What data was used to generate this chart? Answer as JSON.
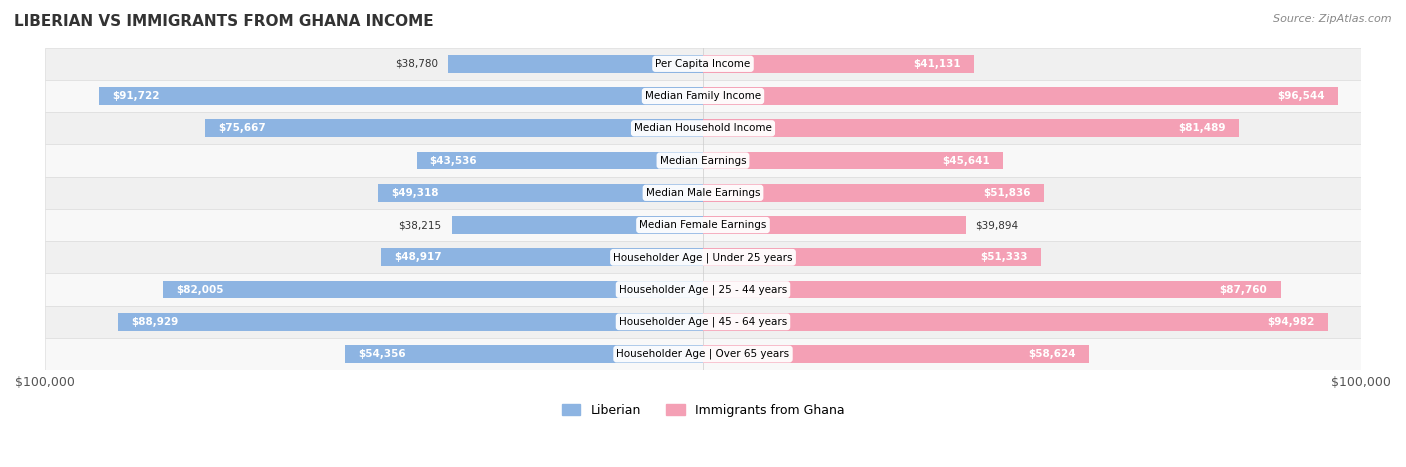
{
  "title": "LIBERIAN VS IMMIGRANTS FROM GHANA INCOME",
  "source": "Source: ZipAtlas.com",
  "categories": [
    "Per Capita Income",
    "Median Family Income",
    "Median Household Income",
    "Median Earnings",
    "Median Male Earnings",
    "Median Female Earnings",
    "Householder Age | Under 25 years",
    "Householder Age | 25 - 44 years",
    "Householder Age | 45 - 64 years",
    "Householder Age | Over 65 years"
  ],
  "liberian_values": [
    38780,
    91722,
    75667,
    43536,
    49318,
    38215,
    48917,
    82005,
    88929,
    54356
  ],
  "ghana_values": [
    41131,
    96544,
    81489,
    45641,
    51836,
    39894,
    51333,
    87760,
    94982,
    58624
  ],
  "liberian_labels": [
    "$38,780",
    "$91,722",
    "$75,667",
    "$43,536",
    "$49,318",
    "$38,215",
    "$48,917",
    "$82,005",
    "$88,929",
    "$54,356"
  ],
  "ghana_labels": [
    "$41,131",
    "$96,544",
    "$81,489",
    "$45,641",
    "$51,836",
    "$39,894",
    "$51,333",
    "$87,760",
    "$94,982",
    "$58,624"
  ],
  "liberian_color": "#8db4e2",
  "ghana_color": "#f4a0b5",
  "liberian_color_dark": "#6699cc",
  "ghana_color_dark": "#e87099",
  "max_value": 100000,
  "bg_color": "#f5f5f5",
  "row_bg_light": "#f9f9f9",
  "row_bg_dark": "#eeeeee",
  "liberian_legend": "Liberian",
  "ghana_legend": "Immigrants from Ghana"
}
